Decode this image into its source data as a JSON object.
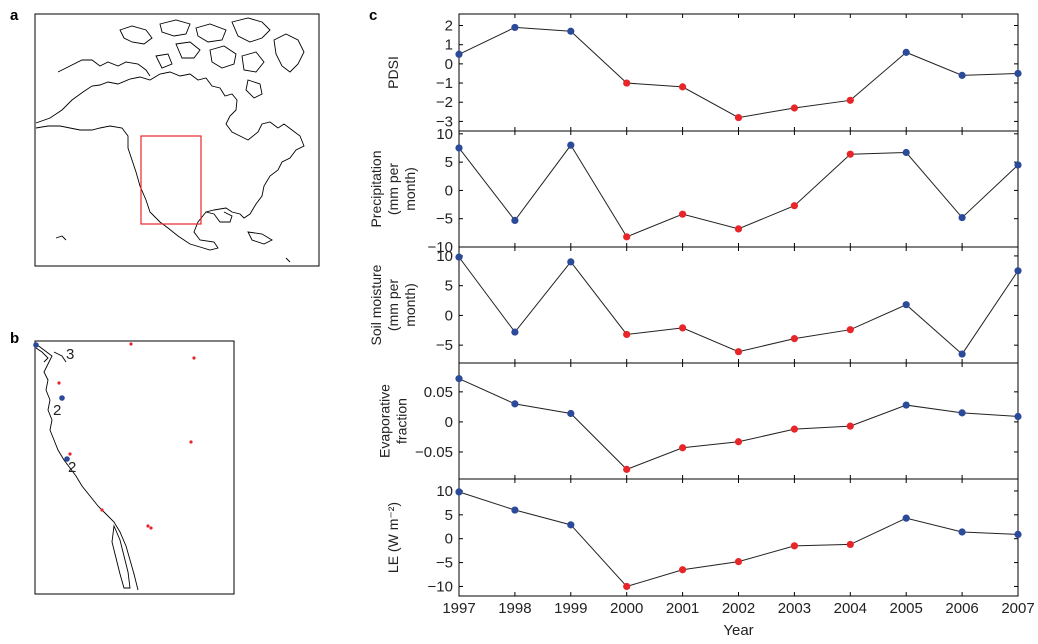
{
  "panels": {
    "a": "a",
    "b": "b",
    "c": "c"
  },
  "map_b_labels": [
    "3",
    "2",
    "2"
  ],
  "colors": {
    "wet": "#2b4a9a",
    "dry": "#e8262a",
    "line": "#222222",
    "box": "#e8262a"
  },
  "chart_data": {
    "type": "line",
    "x": [
      1997,
      1998,
      1999,
      2000,
      2001,
      2002,
      2003,
      2004,
      2005,
      2006,
      2007
    ],
    "xlabel": "Year",
    "point_colors": [
      "blue",
      "blue",
      "blue",
      "red",
      "red",
      "red",
      "red",
      "red",
      "blue",
      "blue",
      "blue"
    ],
    "series": [
      {
        "ylabel": [
          "PDSI"
        ],
        "values": [
          0.5,
          1.9,
          1.7,
          -1.0,
          -1.2,
          -2.8,
          -2.3,
          -1.9,
          0.6,
          -0.6,
          -0.5
        ],
        "ylim": [
          -3.5,
          2.6
        ],
        "ticks": [
          2,
          1,
          0,
          -1,
          -2,
          -3
        ],
        "tick_labels": [
          "2",
          "1",
          "0",
          "−1",
          "−2",
          "−3"
        ]
      },
      {
        "ylabel": [
          "Precipitation",
          "(mm per",
          "month)"
        ],
        "values": [
          7.5,
          -5.3,
          8.0,
          -8.2,
          -4.2,
          -6.8,
          -2.7,
          6.4,
          6.7,
          -4.8,
          4.5
        ],
        "ylim": [
          -10,
          10.5
        ],
        "ticks": [
          10,
          5,
          0,
          -5,
          -10
        ],
        "tick_labels": [
          "10",
          "5",
          "0",
          "−5",
          "−10"
        ]
      },
      {
        "ylabel": [
          "Soil moisture",
          "(mm per",
          "month)"
        ],
        "values": [
          9.8,
          -2.8,
          9.0,
          -3.2,
          -2.1,
          -6.1,
          -3.9,
          -2.4,
          1.8,
          -6.5,
          7.5
        ],
        "ylim": [
          -8,
          11.5
        ],
        "ticks": [
          10,
          5,
          0,
          -5
        ],
        "tick_labels": [
          "10",
          "5",
          "0",
          "−5"
        ]
      },
      {
        "ylabel": [
          "Evaporative",
          "fraction"
        ],
        "values": [
          0.072,
          0.03,
          0.014,
          -0.079,
          -0.043,
          -0.033,
          -0.012,
          -0.007,
          0.028,
          0.015,
          0.009
        ],
        "ylim": [
          -0.095,
          0.098
        ],
        "ticks": [
          0.05,
          0,
          -0.05
        ],
        "tick_labels": [
          "0.05",
          "0",
          "−0.05"
        ]
      },
      {
        "ylabel": [
          "LE (W m⁻²)"
        ],
        "values": [
          9.8,
          6.0,
          2.9,
          -10.0,
          -6.5,
          -4.8,
          -1.5,
          -1.2,
          4.3,
          1.4,
          0.9
        ],
        "ylim": [
          -12,
          12.5
        ],
        "ticks": [
          10,
          5,
          0,
          -5,
          -10
        ],
        "tick_labels": [
          "10",
          "5",
          "0",
          "−5",
          "−10"
        ]
      }
    ]
  }
}
